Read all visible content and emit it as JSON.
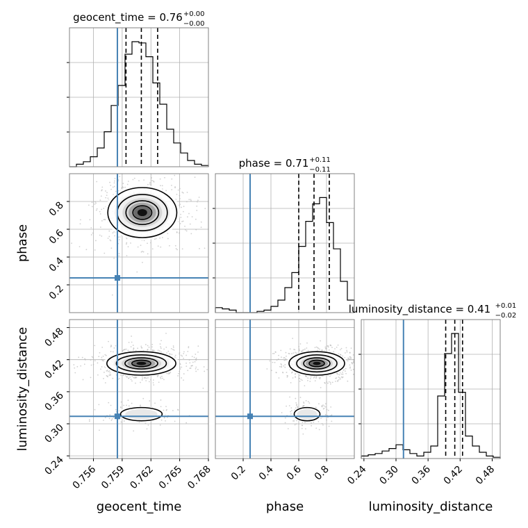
{
  "chart_data": {
    "type": "corner",
    "colors": {
      "truth": "#4682b4",
      "hist": "#000000",
      "grid": "#b0b0b0",
      "frame": "#808080",
      "scatter": "#b0b0b0"
    },
    "parameters": [
      {
        "name": "geocent_time",
        "axis_label": "geocent_time",
        "range": [
          0.7535,
          0.768
        ],
        "ticks": [
          0.756,
          0.759,
          0.762,
          0.765,
          0.768
        ],
        "tick_labels": [
          "0.756",
          "0.759",
          "0.762",
          "0.765",
          "0.768"
        ],
        "truth": 0.7585,
        "median": 0.761,
        "q_low": 0.7594,
        "q_high": 0.7627,
        "title_prefix": "geocent_time = 0.76",
        "title_sup": "+0.00",
        "title_sub": "−0.00"
      },
      {
        "name": "phase",
        "axis_label": "phase",
        "range": [
          0.0,
          1.0
        ],
        "ticks": [
          0.2,
          0.4,
          0.6,
          0.8
        ],
        "tick_labels": [
          "0.2",
          "0.4",
          "0.6",
          "0.8"
        ],
        "truth": 0.25,
        "median": 0.71,
        "q_low": 0.6,
        "q_high": 0.82,
        "title_prefix": "phase = 0.71",
        "title_sup": "+0.11",
        "title_sub": "−0.11"
      },
      {
        "name": "luminosity_distance",
        "axis_label": "luminosity_distance",
        "range": [
          0.235,
          0.495
        ],
        "ticks": [
          0.24,
          0.3,
          0.36,
          0.42,
          0.48
        ],
        "tick_labels": [
          "0.24",
          "0.30",
          "0.36",
          "0.42",
          "0.48"
        ],
        "truth": 0.314,
        "median": 0.41,
        "q_low": 0.393,
        "q_high": 0.4245,
        "title_prefix": "luminosity_distance = 0.41",
        "title_sup": "+0.01",
        "title_sub": "−0.02"
      }
    ],
    "histograms": [
      {
        "param": 0,
        "bins": 20,
        "counts": [
          0.0,
          0.02,
          0.04,
          0.08,
          0.15,
          0.28,
          0.49,
          0.65,
          0.9,
          1.0,
          0.99,
          0.88,
          0.67,
          0.5,
          0.3,
          0.19,
          0.11,
          0.05,
          0.02,
          0.01
        ]
      },
      {
        "param": 1,
        "bins": 20,
        "counts": [
          0.04,
          0.03,
          0.02,
          0.0,
          0.0,
          0.0,
          0.01,
          0.02,
          0.05,
          0.1,
          0.2,
          0.32,
          0.53,
          0.73,
          0.87,
          0.92,
          0.72,
          0.51,
          0.25,
          0.1
        ]
      },
      {
        "param": 2,
        "bins": 20,
        "counts": [
          0.02,
          0.03,
          0.04,
          0.06,
          0.08,
          0.11,
          0.07,
          0.04,
          0.02,
          0.05,
          0.1,
          0.5,
          0.84,
          1.0,
          0.53,
          0.18,
          0.1,
          0.05,
          0.02,
          0.01
        ]
      }
    ],
    "joint_modes": [
      {
        "row": 1,
        "col": 0,
        "x": 0.7611,
        "y": 0.72,
        "sx": 0.0018,
        "sy": 0.09,
        "weight": 1.0
      },
      {
        "row": 2,
        "col": 0,
        "x": 0.761,
        "y": 0.413,
        "sx": 0.0018,
        "sy": 0.011,
        "weight": 1.0
      },
      {
        "row": 2,
        "col": 0,
        "x": 0.761,
        "y": 0.318,
        "sx": 0.0014,
        "sy": 0.008,
        "weight": 0.22
      },
      {
        "row": 2,
        "col": 1,
        "x": 0.73,
        "y": 0.413,
        "sx": 0.1,
        "sy": 0.011,
        "weight": 1.0
      },
      {
        "row": 2,
        "col": 1,
        "x": 0.66,
        "y": 0.318,
        "sx": 0.06,
        "sy": 0.008,
        "weight": 0.22
      }
    ]
  }
}
